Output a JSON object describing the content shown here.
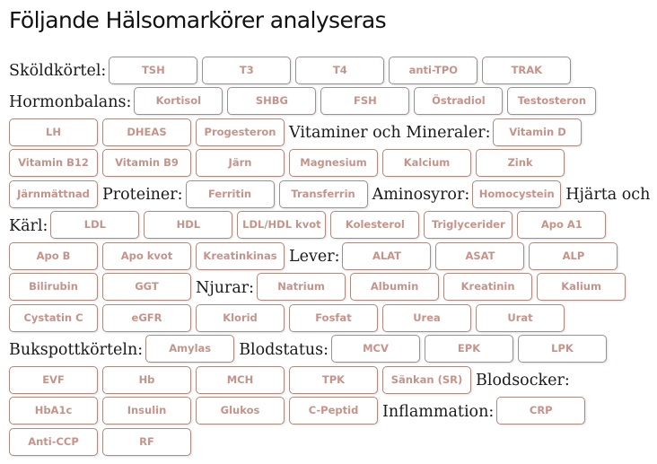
{
  "title": "Följande Hälsomarkörer analyseras",
  "colors": {
    "button_text": "#c4948a",
    "button_border": "#ab8a80"
  },
  "sections": [
    {
      "label": "Sköldkörtel:",
      "items": [
        "TSH",
        "T3",
        "T4",
        "anti-TPO",
        "TRAK"
      ]
    },
    {
      "label": "Hormonbalans:",
      "items": [
        "Kortisol",
        "SHBG",
        "FSH",
        "Östradiol",
        "Testosteron",
        "LH",
        "DHEAS",
        "Progesteron"
      ]
    },
    {
      "label": "Vitaminer och Mineraler:",
      "items": [
        "Vitamin D",
        "Vitamin B12",
        "Vitamin B9",
        "Järn",
        "Magnesium",
        "Kalcium",
        "Zink",
        "Järnmättnad"
      ]
    },
    {
      "label": "Proteiner:",
      "items": [
        "Ferritin",
        "Transferrin"
      ]
    },
    {
      "label": "Aminosyror:",
      "items": [
        "Homocystein"
      ]
    },
    {
      "label": "Hjärta och Kärl:",
      "items": [
        "LDL",
        "HDL",
        "LDL/HDL kvot",
        "Kolesterol",
        "Triglycerider",
        "Apo A1",
        "Apo B",
        "Apo kvot",
        "Kreatinkinas"
      ]
    },
    {
      "label": "Lever:",
      "items": [
        "ALAT",
        "ASAT",
        "ALP",
        "Bilirubin",
        "GGT"
      ]
    },
    {
      "label": "Njurar:",
      "items": [
        "Natrium",
        "Albumin",
        "Kreatinin",
        "Kalium",
        "Cystatin C",
        "eGFR",
        "Klorid",
        "Fosfat",
        "Urea",
        "Urat"
      ]
    },
    {
      "label": "Bukspottkörteln:",
      "items": [
        "Amylas"
      ]
    },
    {
      "label": "Blodstatus:",
      "items": [
        "MCV",
        "EPK",
        "LPK",
        "EVF",
        "Hb",
        "MCH",
        "TPK",
        "Sänkan (SR)"
      ]
    },
    {
      "label": "Blodsocker:",
      "items": [
        "HbA1c",
        "Insulin",
        "Glukos",
        "C-Peptid"
      ]
    },
    {
      "label": "Inflammation:",
      "items": [
        "CRP",
        "Anti-CCP",
        "RF"
      ]
    }
  ]
}
